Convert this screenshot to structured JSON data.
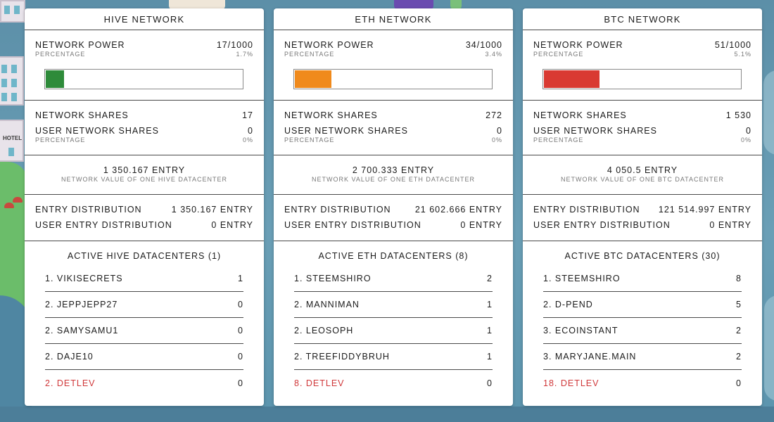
{
  "colors": {
    "hive_fill": "#2e8b3a",
    "eth_fill": "#f08a1c",
    "btc_fill": "#d93a32",
    "highlight_user": "#d0383a"
  },
  "cards": [
    {
      "title": "HIVE NETWORK",
      "power_label": "NETWORK POWER",
      "power_value": "17/1000",
      "percentage_label": "PERCENTAGE",
      "power_percent": "1.7%",
      "power_fraction": 0.017,
      "shares_label": "NETWORK SHARES",
      "shares_value": "17",
      "user_shares_label": "USER NETWORK SHARES",
      "user_shares_value": "0",
      "user_percentage_label": "PERCENTAGE",
      "user_percent": "0%",
      "datacenter_value": "1 350.167 ENTRY",
      "datacenter_value_label": "NETWORK VALUE OF ONE HIVE DATACENTER",
      "dist_label": "ENTRY DISTRIBUTION",
      "dist_value": "1 350.167 ENTRY",
      "user_dist_label": "USER ENTRY DISTRIBUTION",
      "user_dist_value": "0 ENTRY",
      "active_title": "ACTIVE HIVE DATACENTERS (1)",
      "datacenters": [
        {
          "name": "1. VIKISECRETS",
          "count": "1"
        },
        {
          "name": "2. JEPPJEPP27",
          "count": "0"
        },
        {
          "name": "2. SAMYSAMU1",
          "count": "0"
        },
        {
          "name": "2. DAJE10",
          "count": "0"
        },
        {
          "name": "2. DETLEV",
          "count": "0"
        }
      ]
    },
    {
      "title": "ETH NETWORK",
      "power_label": "NETWORK POWER",
      "power_value": "34/1000",
      "percentage_label": "PERCENTAGE",
      "power_percent": "3.4%",
      "power_fraction": 0.034,
      "shares_label": "NETWORK SHARES",
      "shares_value": "272",
      "user_shares_label": "USER NETWORK SHARES",
      "user_shares_value": "0",
      "user_percentage_label": "PERCENTAGE",
      "user_percent": "0%",
      "datacenter_value": "2 700.333 ENTRY",
      "datacenter_value_label": "NETWORK VALUE OF ONE ETH DATACENTER",
      "dist_label": "ENTRY DISTRIBUTION",
      "dist_value": "21 602.666 ENTRY",
      "user_dist_label": "USER ENTRY DISTRIBUTION",
      "user_dist_value": "0 ENTRY",
      "active_title": "ACTIVE ETH DATACENTERS (8)",
      "datacenters": [
        {
          "name": "1. STEEMSHIRO",
          "count": "2"
        },
        {
          "name": "2. MANNIMAN",
          "count": "1"
        },
        {
          "name": "2. LEOSOPH",
          "count": "1"
        },
        {
          "name": "2. TREEFIDDYBRUH",
          "count": "1"
        },
        {
          "name": "8. DETLEV",
          "count": "0"
        }
      ]
    },
    {
      "title": "BTC NETWORK",
      "power_label": "NETWORK POWER",
      "power_value": "51/1000",
      "percentage_label": "PERCENTAGE",
      "power_percent": "5.1%",
      "power_fraction": 0.051,
      "shares_label": "NETWORK SHARES",
      "shares_value": "1 530",
      "user_shares_label": "USER NETWORK SHARES",
      "user_shares_value": "0",
      "user_percentage_label": "PERCENTAGE",
      "user_percent": "0%",
      "datacenter_value": "4 050.5 ENTRY",
      "datacenter_value_label": "NETWORK VALUE OF ONE BTC DATACENTER",
      "dist_label": "ENTRY DISTRIBUTION",
      "dist_value": "121 514.997 ENTRY",
      "user_dist_label": "USER ENTRY DISTRIBUTION",
      "user_dist_value": "0 ENTRY",
      "active_title": "ACTIVE BTC DATACENTERS (30)",
      "datacenters": [
        {
          "name": "1. STEEMSHIRO",
          "count": "8"
        },
        {
          "name": "2. D-PEND",
          "count": "5"
        },
        {
          "name": "3. ECOINSTANT",
          "count": "2"
        },
        {
          "name": "3. MARYJANE.MAIN",
          "count": "2"
        },
        {
          "name": "18. DETLEV",
          "count": "0"
        }
      ]
    }
  ],
  "background": {
    "hotel_sign": "HOTEL"
  }
}
